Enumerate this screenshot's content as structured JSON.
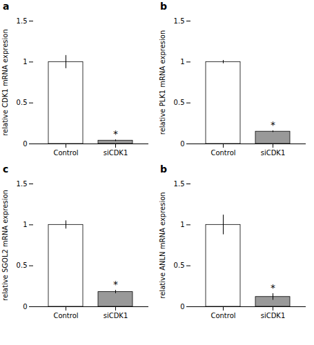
{
  "chart_data": [
    {
      "type": "bar",
      "title": "a",
      "ylabel": "relative CDK1 mRNA expresion",
      "categories": [
        "Control",
        "siCDK1"
      ],
      "values": [
        1.0,
        0.04
      ],
      "errors": [
        0.08,
        0.01
      ],
      "colors": [
        "white",
        "#999999"
      ],
      "annotations": [
        {
          "text": "*",
          "category": "siCDK1"
        }
      ],
      "ylim": [
        0,
        1.5
      ],
      "yticks": [
        0,
        0.5,
        1,
        1.5
      ]
    },
    {
      "type": "bar",
      "title": "b",
      "ylabel": "relative PLK1 mRNA expresion",
      "categories": [
        "Control",
        "siCDK1"
      ],
      "values": [
        1.0,
        0.15
      ],
      "errors": [
        0.02,
        0.01
      ],
      "colors": [
        "white",
        "#999999"
      ],
      "annotations": [
        {
          "text": "*",
          "category": "siCDK1"
        }
      ],
      "ylim": [
        0,
        1.5
      ],
      "yticks": [
        0,
        0.5,
        1,
        1.5
      ]
    },
    {
      "type": "bar",
      "title": "c",
      "ylabel": "relative SGOL2 mRNA expresion",
      "categories": [
        "Control",
        "siCDK1"
      ],
      "values": [
        1.0,
        0.18
      ],
      "errors": [
        0.05,
        0.02
      ],
      "colors": [
        "white",
        "#999999"
      ],
      "annotations": [
        {
          "text": "*",
          "category": "siCDK1"
        }
      ],
      "ylim": [
        0,
        1.5
      ],
      "yticks": [
        0,
        0.5,
        1,
        1.5
      ]
    },
    {
      "type": "bar",
      "title": "b",
      "ylabel": "relative ANLN mRNA expresion",
      "categories": [
        "Control",
        "siCDK1"
      ],
      "values": [
        1.0,
        0.12
      ],
      "errors": [
        0.12,
        0.04
      ],
      "colors": [
        "white",
        "#999999"
      ],
      "annotations": [
        {
          "text": "*",
          "category": "siCDK1"
        }
      ],
      "ylim": [
        0,
        1.5
      ],
      "yticks": [
        0,
        0.5,
        1,
        1.5
      ]
    }
  ]
}
